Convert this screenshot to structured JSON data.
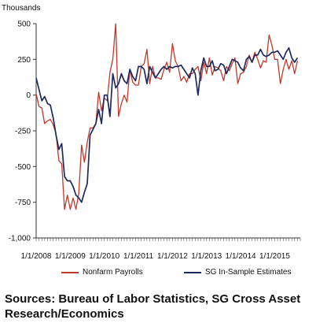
{
  "chart_data": {
    "type": "line",
    "ylabel": "Thousands",
    "ylim": [
      -1000,
      500
    ],
    "y_ticks": [
      500,
      250,
      0,
      -250,
      -500,
      -750,
      -1000
    ],
    "y_tick_labels": [
      "500",
      "250",
      "0",
      "-250",
      "-500",
      "-750",
      "-1,000"
    ],
    "x_tick_labels": [
      "1/1/2008",
      "1/1/2009",
      "1/1/2010",
      "1/1/2011",
      "1/1/2012",
      "1/1/2013",
      "1/1/2014",
      "1/1/2015"
    ],
    "x_range": [
      "2008-01",
      "2015-10"
    ],
    "grid": false,
    "legend_position": "bottom",
    "series": [
      {
        "name": "Nonfarm Payrolls",
        "color": "#c0392b",
        "x": [
          "2008-01",
          "2008-02",
          "2008-03",
          "2008-04",
          "2008-05",
          "2008-06",
          "2008-07",
          "2008-08",
          "2008-09",
          "2008-10",
          "2008-11",
          "2008-12",
          "2009-01",
          "2009-02",
          "2009-03",
          "2009-04",
          "2009-05",
          "2009-06",
          "2009-07",
          "2009-08",
          "2009-09",
          "2009-10",
          "2009-11",
          "2009-12",
          "2010-01",
          "2010-02",
          "2010-03",
          "2010-04",
          "2010-05",
          "2010-06",
          "2010-07",
          "2010-08",
          "2010-09",
          "2010-10",
          "2010-11",
          "2010-12",
          "2011-01",
          "2011-02",
          "2011-03",
          "2011-04",
          "2011-05",
          "2011-06",
          "2011-07",
          "2011-08",
          "2011-09",
          "2011-10",
          "2011-11",
          "2011-12",
          "2012-01",
          "2012-02",
          "2012-03",
          "2012-04",
          "2012-05",
          "2012-06",
          "2012-07",
          "2012-08",
          "2012-09",
          "2012-10",
          "2012-11",
          "2012-12",
          "2013-01",
          "2013-02",
          "2013-03",
          "2013-04",
          "2013-05",
          "2013-06",
          "2013-07",
          "2013-08",
          "2013-09",
          "2013-10",
          "2013-11",
          "2013-12",
          "2014-01",
          "2014-02",
          "2014-03",
          "2014-04",
          "2014-05",
          "2014-06",
          "2014-07",
          "2014-08",
          "2014-09",
          "2014-10",
          "2014-11",
          "2014-12",
          "2015-01",
          "2015-02",
          "2015-03",
          "2015-04",
          "2015-05",
          "2015-06",
          "2015-07",
          "2015-08",
          "2015-09"
        ],
        "values": [
          10,
          -80,
          -90,
          -200,
          -180,
          -170,
          -210,
          -270,
          -460,
          -480,
          -800,
          -700,
          -800,
          -720,
          -800,
          -690,
          -350,
          -470,
          -330,
          -230,
          -230,
          -200,
          20,
          -110,
          -20,
          -40,
          160,
          250,
          500,
          -150,
          -60,
          0,
          -50,
          180,
          90,
          70,
          70,
          200,
          220,
          320,
          80,
          200,
          120,
          120,
          110,
          180,
          230,
          160,
          360,
          240,
          200,
          100,
          130,
          90,
          150,
          150,
          180,
          200,
          100,
          230,
          150,
          260,
          140,
          200,
          190,
          170,
          100,
          200,
          170,
          220,
          260,
          80,
          150,
          160,
          200,
          280,
          230,
          300,
          250,
          190,
          240,
          230,
          420,
          350,
          250,
          250,
          80,
          180,
          250,
          180,
          240,
          150,
          240
        ]
      },
      {
        "name": "SG In-Sample Estimates",
        "color": "#1f2a5c",
        "x": [
          "2008-01",
          "2008-02",
          "2008-03",
          "2008-04",
          "2008-05",
          "2008-06",
          "2008-07",
          "2008-08",
          "2008-09",
          "2008-10",
          "2008-11",
          "2008-12",
          "2009-01",
          "2009-02",
          "2009-03",
          "2009-04",
          "2009-05",
          "2009-06",
          "2009-07",
          "2009-08",
          "2009-09",
          "2009-10",
          "2009-11",
          "2009-12",
          "2010-01",
          "2010-02",
          "2010-03",
          "2010-04",
          "2010-05",
          "2010-06",
          "2010-07",
          "2010-08",
          "2010-09",
          "2010-10",
          "2010-11",
          "2010-12",
          "2011-01",
          "2011-02",
          "2011-03",
          "2011-04",
          "2011-05",
          "2011-06",
          "2011-07",
          "2011-08",
          "2011-09",
          "2011-10",
          "2011-11",
          "2011-12",
          "2012-01",
          "2012-02",
          "2012-03",
          "2012-04",
          "2012-05",
          "2012-06",
          "2012-07",
          "2012-08",
          "2012-09",
          "2012-10",
          "2012-11",
          "2012-12",
          "2013-01",
          "2013-02",
          "2013-03",
          "2013-04",
          "2013-05",
          "2013-06",
          "2013-07",
          "2013-08",
          "2013-09",
          "2013-10",
          "2013-11",
          "2013-12",
          "2014-01",
          "2014-02",
          "2014-03",
          "2014-04",
          "2014-05",
          "2014-06",
          "2014-07",
          "2014-08",
          "2014-09",
          "2014-10",
          "2014-11",
          "2014-12",
          "2015-01",
          "2015-02",
          "2015-03",
          "2015-04",
          "2015-05",
          "2015-06",
          "2015-07",
          "2015-08",
          "2015-09"
        ],
        "values": [
          120,
          40,
          -40,
          -10,
          -60,
          -70,
          -160,
          -280,
          -380,
          -340,
          -570,
          -600,
          -600,
          -640,
          -700,
          -720,
          -750,
          -680,
          -620,
          -280,
          -240,
          -200,
          -100,
          -200,
          0,
          0,
          -150,
          150,
          50,
          80,
          150,
          100,
          80,
          180,
          130,
          100,
          200,
          200,
          180,
          80,
          200,
          160,
          120,
          150,
          180,
          200,
          180,
          200,
          190,
          200,
          200,
          210,
          180,
          150,
          120,
          190,
          150,
          0,
          170,
          260,
          200,
          200,
          240,
          170,
          180,
          220,
          210,
          150,
          200,
          250,
          240,
          230,
          190,
          170,
          250,
          270,
          230,
          280,
          280,
          320,
          280,
          270,
          280,
          300,
          300,
          310,
          280,
          250,
          300,
          330,
          260,
          230,
          260
        ]
      }
    ]
  },
  "source_text": "Sources: Bureau of Labor Statistics, SG Cross Asset Research/Economics"
}
